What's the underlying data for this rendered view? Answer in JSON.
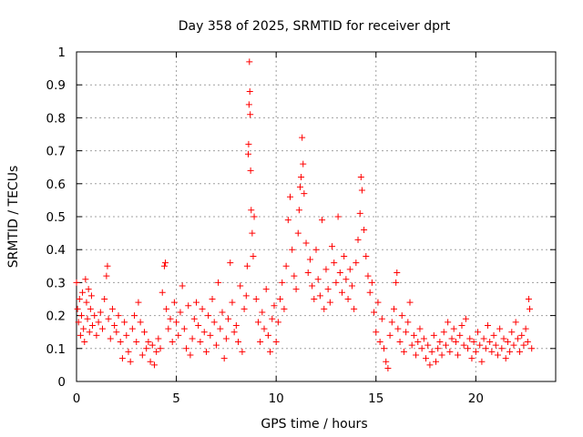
{
  "chart_data": {
    "type": "scatter",
    "title": "Day 358 of 2025, SRMTID for receiver dprt",
    "xlabel": "GPS time / hours",
    "ylabel": "SRMTID / TECUs",
    "xlim": [
      0,
      24
    ],
    "ylim": [
      0,
      1
    ],
    "x_ticks": [
      0,
      5,
      10,
      15,
      20
    ],
    "y_ticks": [
      0,
      0.1,
      0.2,
      0.3,
      0.4,
      0.5,
      0.6,
      0.7,
      0.8,
      0.9,
      1
    ],
    "y_tick_labels": [
      "0",
      "0.1",
      "0.2",
      "0.3",
      "0.4",
      "0.5",
      "0.6",
      "0.7",
      "0.8",
      "0.9",
      "1"
    ],
    "grid": true,
    "marker": "+",
    "color": "#ff0000",
    "series": [
      {
        "name": "SRMTID",
        "points": [
          [
            0.0,
            0.3
          ],
          [
            0.05,
            0.22
          ],
          [
            0.1,
            0.18
          ],
          [
            0.15,
            0.25
          ],
          [
            0.2,
            0.14
          ],
          [
            0.25,
            0.2
          ],
          [
            0.3,
            0.27
          ],
          [
            0.35,
            0.16
          ],
          [
            0.4,
            0.12
          ],
          [
            0.45,
            0.31
          ],
          [
            0.5,
            0.24
          ],
          [
            0.55,
            0.19
          ],
          [
            0.6,
            0.28
          ],
          [
            0.65,
            0.15
          ],
          [
            0.7,
            0.22
          ],
          [
            0.75,
            0.26
          ],
          [
            0.8,
            0.17
          ],
          [
            0.9,
            0.2
          ],
          [
            1.0,
            0.14
          ],
          [
            1.1,
            0.18
          ],
          [
            1.2,
            0.21
          ],
          [
            1.3,
            0.16
          ],
          [
            1.4,
            0.25
          ],
          [
            1.5,
            0.32
          ],
          [
            1.55,
            0.35
          ],
          [
            1.6,
            0.19
          ],
          [
            1.7,
            0.13
          ],
          [
            1.8,
            0.22
          ],
          [
            1.9,
            0.17
          ],
          [
            2.0,
            0.15
          ],
          [
            2.1,
            0.2
          ],
          [
            2.2,
            0.12
          ],
          [
            2.3,
            0.07
          ],
          [
            2.4,
            0.18
          ],
          [
            2.5,
            0.14
          ],
          [
            2.6,
            0.09
          ],
          [
            2.7,
            0.06
          ],
          [
            2.8,
            0.16
          ],
          [
            2.9,
            0.2
          ],
          [
            3.0,
            0.12
          ],
          [
            3.1,
            0.24
          ],
          [
            3.2,
            0.18
          ],
          [
            3.3,
            0.08
          ],
          [
            3.4,
            0.15
          ],
          [
            3.5,
            0.1
          ],
          [
            3.6,
            0.12
          ],
          [
            3.7,
            0.06
          ],
          [
            3.8,
            0.11
          ],
          [
            3.9,
            0.05
          ],
          [
            4.0,
            0.09
          ],
          [
            4.1,
            0.13
          ],
          [
            4.2,
            0.1
          ],
          [
            4.3,
            0.27
          ],
          [
            4.4,
            0.35
          ],
          [
            4.45,
            0.36
          ],
          [
            4.5,
            0.22
          ],
          [
            4.6,
            0.16
          ],
          [
            4.7,
            0.19
          ],
          [
            4.8,
            0.12
          ],
          [
            4.9,
            0.24
          ],
          [
            5.0,
            0.18
          ],
          [
            5.1,
            0.14
          ],
          [
            5.2,
            0.21
          ],
          [
            5.3,
            0.29
          ],
          [
            5.4,
            0.16
          ],
          [
            5.5,
            0.1
          ],
          [
            5.6,
            0.23
          ],
          [
            5.7,
            0.08
          ],
          [
            5.8,
            0.13
          ],
          [
            5.9,
            0.19
          ],
          [
            6.0,
            0.24
          ],
          [
            6.1,
            0.17
          ],
          [
            6.2,
            0.12
          ],
          [
            6.3,
            0.22
          ],
          [
            6.4,
            0.15
          ],
          [
            6.5,
            0.09
          ],
          [
            6.6,
            0.2
          ],
          [
            6.7,
            0.14
          ],
          [
            6.8,
            0.25
          ],
          [
            6.9,
            0.18
          ],
          [
            7.0,
            0.11
          ],
          [
            7.1,
            0.3
          ],
          [
            7.2,
            0.16
          ],
          [
            7.3,
            0.21
          ],
          [
            7.4,
            0.07
          ],
          [
            7.5,
            0.13
          ],
          [
            7.6,
            0.19
          ],
          [
            7.7,
            0.36
          ],
          [
            7.8,
            0.24
          ],
          [
            7.9,
            0.15
          ],
          [
            8.0,
            0.17
          ],
          [
            8.1,
            0.12
          ],
          [
            8.2,
            0.29
          ],
          [
            8.3,
            0.09
          ],
          [
            8.4,
            0.22
          ],
          [
            8.5,
            0.26
          ],
          [
            8.55,
            0.35
          ],
          [
            8.6,
            0.69
          ],
          [
            8.62,
            0.72
          ],
          [
            8.64,
            0.84
          ],
          [
            8.66,
            0.97
          ],
          [
            8.68,
            0.88
          ],
          [
            8.7,
            0.81
          ],
          [
            8.72,
            0.64
          ],
          [
            8.75,
            0.52
          ],
          [
            8.8,
            0.45
          ],
          [
            8.85,
            0.38
          ],
          [
            8.9,
            0.5
          ],
          [
            9.0,
            0.25
          ],
          [
            9.1,
            0.18
          ],
          [
            9.2,
            0.12
          ],
          [
            9.3,
            0.21
          ],
          [
            9.4,
            0.16
          ],
          [
            9.5,
            0.28
          ],
          [
            9.6,
            0.14
          ],
          [
            9.7,
            0.09
          ],
          [
            9.8,
            0.19
          ],
          [
            9.9,
            0.23
          ],
          [
            10.0,
            0.12
          ],
          [
            10.1,
            0.18
          ],
          [
            10.2,
            0.25
          ],
          [
            10.3,
            0.3
          ],
          [
            10.4,
            0.22
          ],
          [
            10.5,
            0.35
          ],
          [
            10.6,
            0.49
          ],
          [
            10.7,
            0.56
          ],
          [
            10.8,
            0.4
          ],
          [
            10.9,
            0.32
          ],
          [
            11.0,
            0.28
          ],
          [
            11.1,
            0.45
          ],
          [
            11.15,
            0.52
          ],
          [
            11.2,
            0.59
          ],
          [
            11.25,
            0.62
          ],
          [
            11.3,
            0.74
          ],
          [
            11.35,
            0.66
          ],
          [
            11.4,
            0.57
          ],
          [
            11.5,
            0.42
          ],
          [
            11.6,
            0.33
          ],
          [
            11.7,
            0.37
          ],
          [
            11.8,
            0.29
          ],
          [
            11.9,
            0.25
          ],
          [
            12.0,
            0.4
          ],
          [
            12.1,
            0.31
          ],
          [
            12.2,
            0.26
          ],
          [
            12.3,
            0.49
          ],
          [
            12.4,
            0.22
          ],
          [
            12.5,
            0.34
          ],
          [
            12.6,
            0.28
          ],
          [
            12.7,
            0.24
          ],
          [
            12.8,
            0.41
          ],
          [
            12.9,
            0.36
          ],
          [
            13.0,
            0.3
          ],
          [
            13.1,
            0.5
          ],
          [
            13.2,
            0.33
          ],
          [
            13.3,
            0.27
          ],
          [
            13.4,
            0.38
          ],
          [
            13.5,
            0.31
          ],
          [
            13.6,
            0.25
          ],
          [
            13.7,
            0.34
          ],
          [
            13.8,
            0.29
          ],
          [
            13.9,
            0.22
          ],
          [
            14.0,
            0.36
          ],
          [
            14.1,
            0.43
          ],
          [
            14.2,
            0.51
          ],
          [
            14.25,
            0.62
          ],
          [
            14.3,
            0.58
          ],
          [
            14.4,
            0.46
          ],
          [
            14.5,
            0.38
          ],
          [
            14.6,
            0.32
          ],
          [
            14.7,
            0.27
          ],
          [
            14.8,
            0.3
          ],
          [
            14.9,
            0.21
          ],
          [
            15.0,
            0.15
          ],
          [
            15.1,
            0.24
          ],
          [
            15.2,
            0.12
          ],
          [
            15.3,
            0.19
          ],
          [
            15.4,
            0.1
          ],
          [
            15.5,
            0.06
          ],
          [
            15.6,
            0.04
          ],
          [
            15.7,
            0.14
          ],
          [
            15.8,
            0.18
          ],
          [
            15.9,
            0.22
          ],
          [
            16.0,
            0.3
          ],
          [
            16.05,
            0.33
          ],
          [
            16.1,
            0.16
          ],
          [
            16.2,
            0.12
          ],
          [
            16.3,
            0.2
          ],
          [
            16.4,
            0.09
          ],
          [
            16.5,
            0.15
          ],
          [
            16.6,
            0.18
          ],
          [
            16.7,
            0.24
          ],
          [
            16.8,
            0.11
          ],
          [
            16.9,
            0.14
          ],
          [
            17.0,
            0.08
          ],
          [
            17.1,
            0.12
          ],
          [
            17.2,
            0.16
          ],
          [
            17.3,
            0.1
          ],
          [
            17.4,
            0.13
          ],
          [
            17.5,
            0.07
          ],
          [
            17.6,
            0.11
          ],
          [
            17.7,
            0.05
          ],
          [
            17.8,
            0.09
          ],
          [
            17.9,
            0.14
          ],
          [
            18.0,
            0.06
          ],
          [
            18.1,
            0.1
          ],
          [
            18.2,
            0.12
          ],
          [
            18.3,
            0.08
          ],
          [
            18.4,
            0.15
          ],
          [
            18.5,
            0.11
          ],
          [
            18.6,
            0.18
          ],
          [
            18.7,
            0.09
          ],
          [
            18.8,
            0.13
          ],
          [
            18.9,
            0.16
          ],
          [
            19.0,
            0.12
          ],
          [
            19.1,
            0.08
          ],
          [
            19.2,
            0.14
          ],
          [
            19.3,
            0.17
          ],
          [
            19.4,
            0.11
          ],
          [
            19.5,
            0.19
          ],
          [
            19.6,
            0.1
          ],
          [
            19.7,
            0.13
          ],
          [
            19.8,
            0.07
          ],
          [
            19.9,
            0.12
          ],
          [
            20.0,
            0.09
          ],
          [
            20.1,
            0.15
          ],
          [
            20.2,
            0.11
          ],
          [
            20.3,
            0.06
          ],
          [
            20.4,
            0.13
          ],
          [
            20.5,
            0.1
          ],
          [
            20.6,
            0.17
          ],
          [
            20.7,
            0.12
          ],
          [
            20.8,
            0.09
          ],
          [
            20.9,
            0.14
          ],
          [
            21.0,
            0.11
          ],
          [
            21.1,
            0.08
          ],
          [
            21.2,
            0.16
          ],
          [
            21.3,
            0.1
          ],
          [
            21.4,
            0.13
          ],
          [
            21.5,
            0.07
          ],
          [
            21.6,
            0.12
          ],
          [
            21.7,
            0.09
          ],
          [
            21.8,
            0.15
          ],
          [
            21.9,
            0.11
          ],
          [
            22.0,
            0.18
          ],
          [
            22.1,
            0.13
          ],
          [
            22.2,
            0.09
          ],
          [
            22.3,
            0.14
          ],
          [
            22.4,
            0.11
          ],
          [
            22.5,
            0.16
          ],
          [
            22.6,
            0.12
          ],
          [
            22.65,
            0.25
          ],
          [
            22.7,
            0.22
          ],
          [
            22.8,
            0.1
          ]
        ]
      }
    ]
  }
}
